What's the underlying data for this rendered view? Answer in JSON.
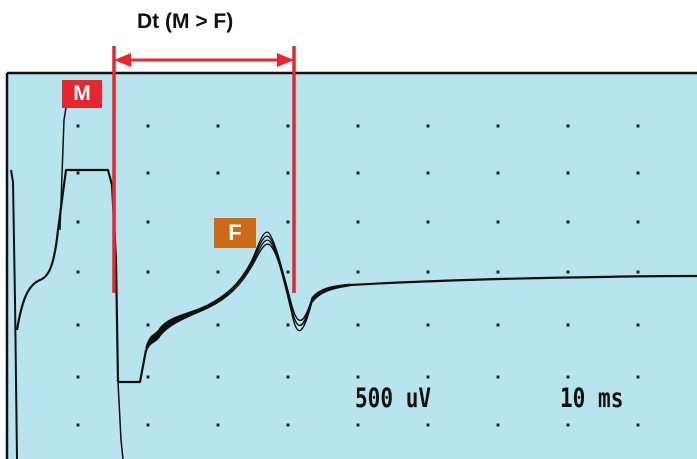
{
  "annotations": {
    "interval_label": "Dt  (M > F)",
    "m_wave_label": "M",
    "f_wave_label": "F"
  },
  "scale": {
    "amplitude_per_division": "500 uV",
    "time_per_division": "10 ms"
  },
  "colors": {
    "screen_background": "#b8e4ee",
    "trace": "#111111",
    "marker_lines": "#e8262e",
    "m_badge": "#e8262e",
    "f_badge": "#cc6a18"
  }
}
